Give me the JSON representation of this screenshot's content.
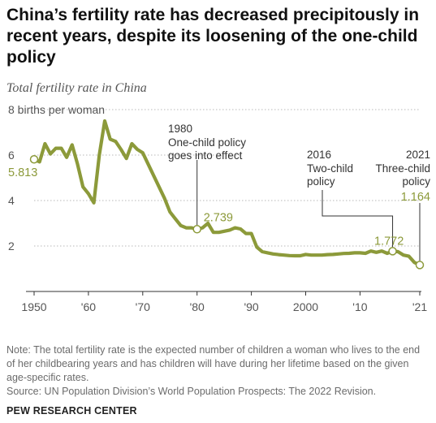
{
  "header": {
    "title": "China’s fertility rate has decreased precipitously in recent years, despite its loosening of the one-child policy",
    "subtitle": "Total fertility rate in China"
  },
  "chart_data": {
    "type": "line",
    "title": "China’s fertility rate has decreased precipitously in recent years, despite its loosening of the one-child policy",
    "subtitle": "Total fertility rate in China",
    "ylabel": "births per woman",
    "xlim": [
      1950,
      2021
    ],
    "ylim": [
      0,
      8
    ],
    "y_ticks": [
      2,
      4,
      6,
      8
    ],
    "y_tick_labels": [
      "2",
      "4",
      "6",
      "8 births per woman"
    ],
    "x_ticks": [
      1950,
      1960,
      1970,
      1980,
      1990,
      2000,
      2010,
      2021
    ],
    "x_tick_labels": [
      "1950",
      "'60",
      "'70",
      "'80",
      "'90",
      "2000",
      "'10",
      "'21"
    ],
    "grid": "horizontal dotted",
    "line_color": "#8c9a3a",
    "x": [
      1950,
      1951,
      1952,
      1953,
      1954,
      1955,
      1956,
      1957,
      1958,
      1959,
      1960,
      1961,
      1962,
      1963,
      1964,
      1965,
      1966,
      1967,
      1968,
      1969,
      1970,
      1971,
      1972,
      1973,
      1974,
      1975,
      1976,
      1977,
      1978,
      1979,
      1980,
      1981,
      1982,
      1983,
      1984,
      1985,
      1986,
      1987,
      1988,
      1989,
      1990,
      1991,
      1992,
      1993,
      1994,
      1995,
      1996,
      1997,
      1998,
      1999,
      2000,
      2001,
      2002,
      2003,
      2004,
      2005,
      2006,
      2007,
      2008,
      2009,
      2010,
      2011,
      2012,
      2013,
      2014,
      2015,
      2016,
      2017,
      2018,
      2019,
      2020,
      2021
    ],
    "values": [
      5.813,
      5.7,
      6.5,
      6.05,
      6.3,
      6.3,
      5.9,
      6.45,
      5.6,
      4.6,
      4.3,
      3.9,
      6.0,
      7.5,
      6.7,
      6.6,
      6.25,
      5.85,
      6.5,
      6.25,
      6.1,
      5.6,
      5.1,
      4.6,
      4.1,
      3.5,
      3.2,
      2.9,
      2.8,
      2.8,
      2.739,
      2.8,
      3.0,
      2.6,
      2.6,
      2.65,
      2.7,
      2.8,
      2.75,
      2.55,
      2.55,
      1.95,
      1.75,
      1.7,
      1.65,
      1.62,
      1.6,
      1.58,
      1.57,
      1.57,
      1.63,
      1.6,
      1.6,
      1.6,
      1.62,
      1.63,
      1.65,
      1.67,
      1.68,
      1.7,
      1.7,
      1.68,
      1.78,
      1.72,
      1.78,
      1.68,
      1.772,
      1.75,
      1.6,
      1.55,
      1.28,
      1.164
    ],
    "annotations": [
      {
        "year": 1950,
        "value": 5.813,
        "label": "5.813"
      },
      {
        "year": 1980,
        "value": 2.739,
        "label": "2.739",
        "event_year": "1980",
        "event": [
          "One-child policy",
          "goes into effect"
        ]
      },
      {
        "year": 2016,
        "value": 1.772,
        "label": "1.772",
        "event_year": "2016",
        "event": [
          "Two-child",
          "policy"
        ]
      },
      {
        "year": 2021,
        "value": 1.164,
        "label": "1.164",
        "event_year": "2021",
        "event": [
          "Three-child",
          "policy"
        ]
      }
    ]
  },
  "footer": {
    "note": "Note: The total fertility rate is the expected number of children a woman who lives to the end of her childbearing years and has children will have during her lifetime based on the given age-specific rates.",
    "source": "Source: UN Population Division’s World Population Prospects: The 2022 Revision.",
    "brand": "PEW RESEARCH CENTER"
  }
}
